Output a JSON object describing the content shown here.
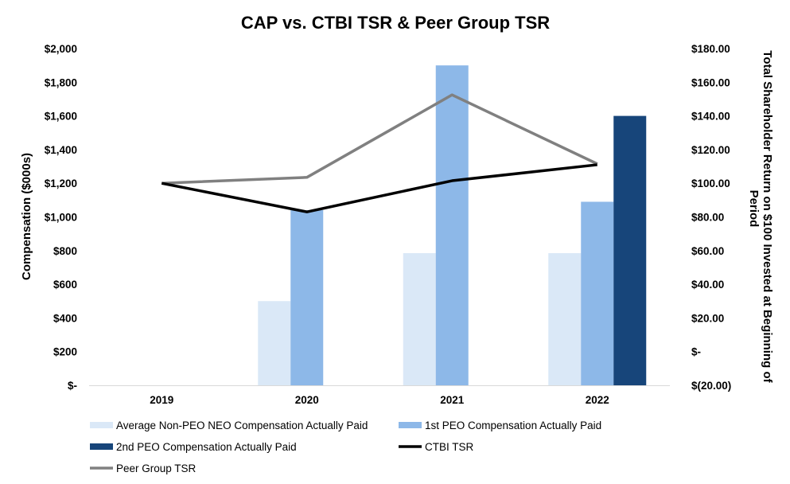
{
  "chart_data": {
    "type": "bar",
    "title": "CAP vs. CTBI TSR & Peer Group TSR",
    "categories": [
      "2019",
      "2020",
      "2021",
      "2022"
    ],
    "ylabel": "Compensation ($000s)",
    "y2label": "Total Shareholder Return on $100 Invested at Beginning of Period",
    "ylim": [
      0,
      2000
    ],
    "y_ticks": [
      "$-",
      "$200",
      "$400",
      "$600",
      "$800",
      "$1,000",
      "$1,200",
      "$1,400",
      "$1,600",
      "$1,800",
      "$2,000"
    ],
    "y2lim": [
      -20,
      180
    ],
    "y2_ticks": [
      "$(20.00)",
      "$-",
      "$20.00",
      "$40.00",
      "$60.00",
      "$80.00",
      "$100.00",
      "$120.00",
      "$140.00",
      "$160.00",
      "$180.00"
    ],
    "grid": false,
    "legend_position": "bottom",
    "series": [
      {
        "name": "Average Non-PEO NEO Compensation Actually Paid",
        "kind": "bar",
        "axis": "left",
        "color": "#dae8f7",
        "values": [
          null,
          500,
          785,
          785
        ]
      },
      {
        "name": "1st PEO Compensation Actually Paid",
        "kind": "bar",
        "axis": "left",
        "color": "#8db8e8",
        "values": [
          null,
          1040,
          1900,
          1090
        ]
      },
      {
        "name": "2nd PEO Compensation Actually Paid",
        "kind": "bar",
        "axis": "left",
        "color": "#17457a",
        "values": [
          null,
          null,
          null,
          1600
        ]
      },
      {
        "name": "CTBI TSR",
        "kind": "line",
        "axis": "right",
        "color": "#000000",
        "values": [
          100,
          83,
          101.5,
          111
        ]
      },
      {
        "name": "Peer Group TSR",
        "kind": "line",
        "axis": "right",
        "color": "#808080",
        "values": [
          100,
          103.5,
          152.5,
          111.5
        ]
      }
    ]
  }
}
